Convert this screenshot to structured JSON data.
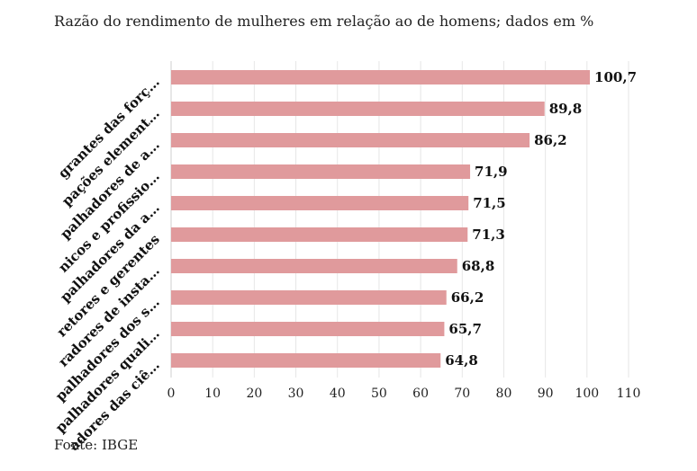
{
  "title": "Razão do rendimento de mulheres em relação ao de homens; dados em %",
  "source": "Fonte: IBGE",
  "chart_data": {
    "type": "bar",
    "orientation": "horizontal",
    "categories": [
      "grantes das forç…",
      "pações element…",
      "palhadores de a…",
      "nicos e profissio…",
      "palhadores da a…",
      "retores e gerentes",
      "radores de insta…",
      "palhadores dos s…",
      "palhadores quali…",
      "adores das ciê…"
    ],
    "values": [
      100.7,
      89.8,
      86.2,
      71.9,
      71.5,
      71.3,
      68.8,
      66.2,
      65.7,
      64.8
    ],
    "value_labels": [
      "100,7",
      "89,8",
      "86,2",
      "71,9",
      "71,5",
      "71,3",
      "68,8",
      "66,2",
      "65,7",
      "64,8"
    ],
    "xlim": [
      0,
      110
    ],
    "xticks": [
      0,
      10,
      20,
      30,
      40,
      50,
      60,
      70,
      80,
      90,
      100,
      110
    ],
    "bar_color": "#e09a9c",
    "grid": true
  }
}
